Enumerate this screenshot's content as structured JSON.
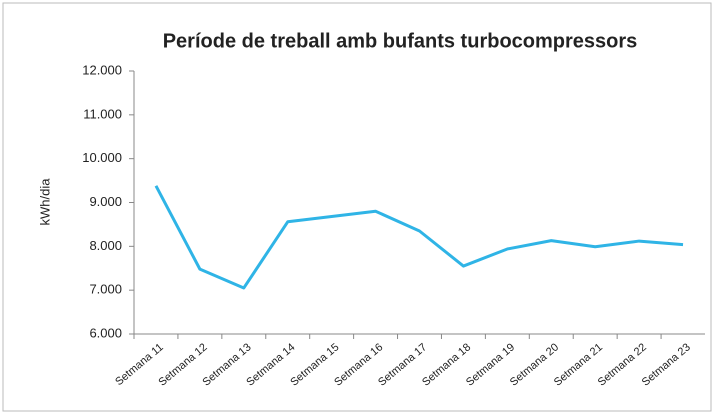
{
  "chart_data": {
    "type": "line",
    "title": "Període de treball amb bufants turbocompressors",
    "y_label": "kWh/dia",
    "categories": [
      "Setmana 11",
      "Setmana 12",
      "Setmana 13",
      "Setmana 14",
      "Setmana 15",
      "Setmana 16",
      "Setmana 17",
      "Setmana 18",
      "Setmana 19",
      "Setmana 20",
      "Setmana 21",
      "Setmana 22",
      "Setmana 23"
    ],
    "series": [
      {
        "name": "kWh/dia",
        "color": "#2fb4e6",
        "values": [
          9380,
          7480,
          7050,
          8560,
          8680,
          8800,
          8350,
          7550,
          7940,
          8130,
          7990,
          8120,
          8040
        ]
      }
    ],
    "ylim": [
      6000,
      12000
    ],
    "yticks": [
      {
        "value": 6000,
        "label": "6.000"
      },
      {
        "value": 7000,
        "label": "7.000"
      },
      {
        "value": 8000,
        "label": "8.000"
      },
      {
        "value": 9000,
        "label": "9.000"
      },
      {
        "value": 10000,
        "label": "10.000"
      },
      {
        "value": 11000,
        "label": "11.000"
      },
      {
        "value": 12000,
        "label": "12.000"
      }
    ],
    "grid": false
  }
}
